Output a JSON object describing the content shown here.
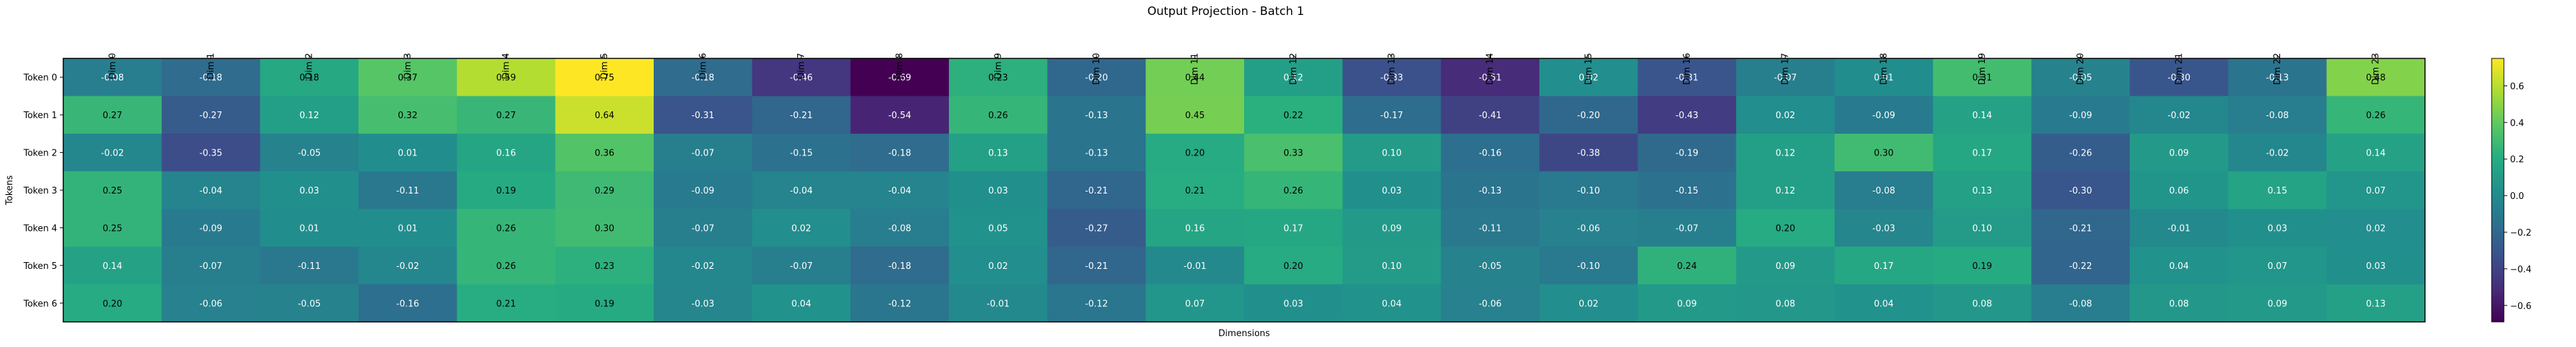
{
  "chart_data": {
    "type": "heatmap",
    "title": "Output Projection - Batch 1",
    "xlabel": "Dimensions",
    "ylabel": "Tokens",
    "x_labels": [
      "Dim 0",
      "Dim 1",
      "Dim 2",
      "Dim 3",
      "Dim 4",
      "Dim 5",
      "Dim 6",
      "Dim 7",
      "Dim 8",
      "Dim 9",
      "Dim 10",
      "Dim 11",
      "Dim 12",
      "Dim 13",
      "Dim 14",
      "Dim 15",
      "Dim 16",
      "Dim 17",
      "Dim 18",
      "Dim 19",
      "Dim 20",
      "Dim 21",
      "Dim 22",
      "Dim 23"
    ],
    "y_labels": [
      "Token 0",
      "Token 1",
      "Token 2",
      "Token 3",
      "Token 4",
      "Token 5",
      "Token 6"
    ],
    "values": [
      [
        -0.08,
        -0.18,
        0.18,
        0.37,
        0.59,
        0.75,
        -0.18,
        -0.46,
        -0.69,
        0.23,
        -0.2,
        0.44,
        0.12,
        -0.33,
        -0.51,
        0.02,
        -0.31,
        -0.07,
        0.01,
        0.31,
        -0.05,
        -0.3,
        -0.13,
        0.48
      ],
      [
        0.27,
        -0.27,
        0.12,
        0.32,
        0.27,
        0.64,
        -0.31,
        -0.21,
        -0.54,
        0.26,
        -0.13,
        0.45,
        0.22,
        -0.17,
        -0.41,
        -0.2,
        -0.43,
        0.02,
        -0.09,
        0.14,
        -0.09,
        -0.02,
        -0.08,
        0.26
      ],
      [
        -0.02,
        -0.35,
        -0.05,
        0.01,
        0.16,
        0.36,
        -0.07,
        -0.15,
        -0.18,
        0.13,
        -0.13,
        0.2,
        0.33,
        0.1,
        -0.16,
        -0.38,
        -0.19,
        0.12,
        0.3,
        0.17,
        -0.26,
        0.09,
        -0.02,
        0.14
      ],
      [
        0.25,
        -0.04,
        0.03,
        -0.11,
        0.19,
        0.29,
        -0.09,
        -0.04,
        -0.04,
        0.03,
        -0.21,
        0.21,
        0.26,
        0.03,
        -0.13,
        -0.1,
        -0.15,
        0.12,
        -0.08,
        0.13,
        -0.3,
        0.06,
        0.15,
        0.07
      ],
      [
        0.25,
        -0.09,
        0.01,
        0.01,
        0.26,
        0.3,
        -0.07,
        0.02,
        -0.08,
        0.05,
        -0.27,
        0.16,
        0.17,
        0.09,
        -0.11,
        -0.06,
        -0.07,
        0.2,
        -0.03,
        0.1,
        -0.21,
        -0.01,
        0.03,
        0.02
      ],
      [
        0.14,
        -0.07,
        -0.11,
        -0.02,
        0.26,
        0.23,
        -0.02,
        -0.07,
        -0.18,
        0.02,
        -0.21,
        -0.01,
        0.2,
        0.1,
        -0.05,
        -0.1,
        0.24,
        0.09,
        0.17,
        0.19,
        -0.22,
        0.04,
        0.07,
        0.03
      ],
      [
        0.2,
        -0.06,
        -0.05,
        -0.16,
        0.21,
        0.19,
        -0.03,
        0.04,
        -0.12,
        -0.01,
        -0.12,
        0.07,
        0.03,
        0.04,
        -0.06,
        0.02,
        0.09,
        0.08,
        0.04,
        0.08,
        -0.08,
        0.08,
        0.09,
        0.13
      ]
    ],
    "colorscale": "viridis",
    "vmin": -0.69,
    "vmax": 0.75,
    "colorbar_ticks": [
      "0.6",
      "0.4",
      "0.2",
      "0.0",
      "−0.2",
      "−0.4",
      "−0.6"
    ],
    "colorbar_tick_values": [
      0.6,
      0.4,
      0.2,
      0.0,
      -0.2,
      -0.4,
      -0.6
    ]
  }
}
